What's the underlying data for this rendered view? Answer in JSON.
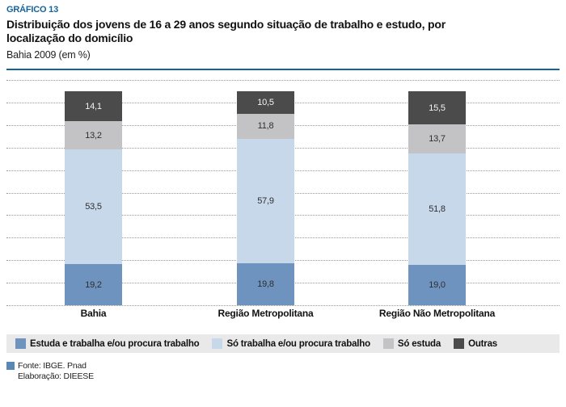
{
  "header": {
    "kicker": "GRÁFICO 13",
    "title": "Distribuição dos jovens de 16 a 29 anos segundo situação de trabalho e estudo, por localização do domicílio",
    "title_lines": [
      "Distribuição dos jovens de 16 a 29 anos segundo situação de trabalho e estudo, por",
      "localização do domicílio"
    ],
    "subtitle": "Bahia 2009 (em %)",
    "accent_color": "#15639c"
  },
  "chart_data": {
    "type": "bar",
    "stacked": true,
    "title": "Distribuição dos jovens de 16 a 29 anos segundo situação de trabalho e estudo, por localização do domicílio",
    "subtitle": "Bahia 2009 (em %)",
    "xlabel": "",
    "ylabel": "",
    "ylim": [
      0,
      100
    ],
    "grid": "horizontal-dotted",
    "gridline_color": "#999999",
    "legend_position": "bottom",
    "legend_bg": "#e9e9e9",
    "categories": [
      "Bahia",
      "Região Metropolitana",
      "Região Não Metropolitana"
    ],
    "series": [
      {
        "name": "Estuda e trabalha e/ou procura trabalho",
        "color": "#6e93be",
        "label_color": "dark",
        "values": [
          19.2,
          19.8,
          19.0
        ]
      },
      {
        "name": "Só trabalha e/ou procura trabalho",
        "color": "#c8d8eb",
        "label_color": "dark",
        "values": [
          53.5,
          57.9,
          51.8
        ]
      },
      {
        "name": "Só estuda",
        "color": "#c3c3c5",
        "label_color": "dark",
        "values": [
          13.2,
          11.8,
          13.7
        ]
      },
      {
        "name": "Outras",
        "color": "#4b4b4b",
        "label_color": "light",
        "values": [
          14.1,
          10.5,
          15.5
        ]
      }
    ],
    "value_label_format": "one-decimal-comma"
  },
  "footer": {
    "source": "Fonte: IBGE. Pnad",
    "elaboration": "Elaboração: DIEESE",
    "swatch_color": "#5b87b5"
  }
}
